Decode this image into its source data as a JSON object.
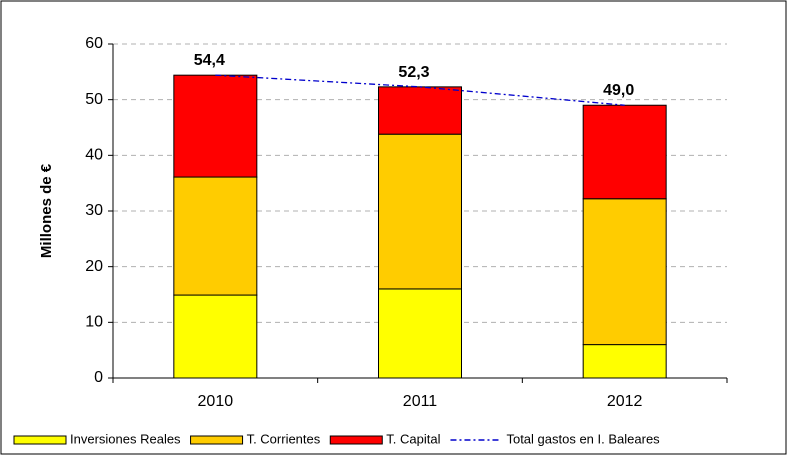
{
  "chart_data": {
    "type": "bar",
    "y_label": "Millones de €",
    "categories": [
      "2010",
      "2011",
      "2012"
    ],
    "series": [
      {
        "name": "Inversiones Reales",
        "color": "#ffff00",
        "values": [
          14.9,
          16.0,
          6.0
        ]
      },
      {
        "name": "T. Corrientes",
        "color": "#ffcc00",
        "values": [
          21.2,
          27.8,
          26.2
        ]
      },
      {
        "name": "T. Capital",
        "color": "#ff0000",
        "values": [
          18.3,
          8.5,
          16.8
        ]
      },
      {
        "name": "Total gastos en I. Baleares",
        "type": "line",
        "color": "#0000cc",
        "values": [
          54.4,
          52.3,
          49.0
        ],
        "value_labels": [
          "54,4",
          "52,3",
          "49,0"
        ]
      }
    ],
    "stacked": true,
    "ylim": [
      0,
      60
    ],
    "yticks": [
      0,
      10,
      20,
      30,
      40,
      50,
      60
    ],
    "grid": true,
    "legend": "bottom"
  }
}
